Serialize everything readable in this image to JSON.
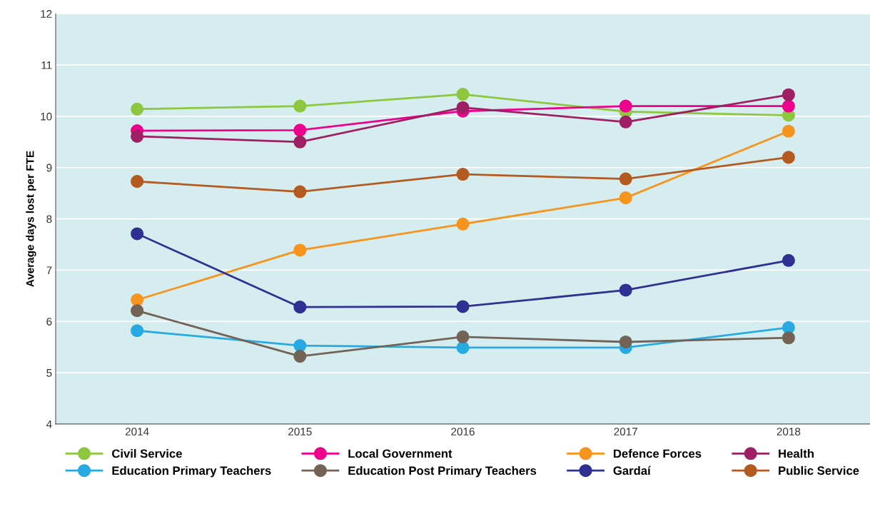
{
  "chart_data": {
    "type": "line",
    "ylabel": "Average days lost per FTE",
    "categories": [
      "2014",
      "2015",
      "2016",
      "2017",
      "2018"
    ],
    "ylim": [
      4,
      12
    ],
    "yticks": [
      4,
      5,
      6,
      7,
      8,
      9,
      10,
      11,
      12
    ],
    "grid": "y",
    "legend": "bottom",
    "marker": "circle",
    "line_style": "solid",
    "series": [
      {
        "name": "Civil Service",
        "color": "#8dc63f",
        "values": [
          10.14,
          10.2,
          10.43,
          10.09,
          10.02
        ]
      },
      {
        "name": "Local Government",
        "color": "#ec008c",
        "values": [
          9.72,
          9.73,
          10.1,
          10.2,
          10.2
        ]
      },
      {
        "name": "Defence Forces",
        "color": "#f7941d",
        "values": [
          6.42,
          7.39,
          7.9,
          8.41,
          9.71
        ]
      },
      {
        "name": "Health",
        "color": "#9e1f63",
        "values": [
          9.61,
          9.5,
          10.17,
          9.89,
          10.42
        ]
      },
      {
        "name": "Education Primary Teachers",
        "color": "#27aae1",
        "values": [
          5.82,
          5.53,
          5.49,
          5.49,
          5.88
        ]
      },
      {
        "name": "Education Post Primary Teachers",
        "color": "#736357",
        "values": [
          6.21,
          5.32,
          5.7,
          5.6,
          5.68
        ]
      },
      {
        "name": "Gardaí",
        "color": "#2e3192",
        "values": [
          7.71,
          6.28,
          6.29,
          6.61,
          7.19
        ]
      },
      {
        "name": "Public Service",
        "color": "#b35a20",
        "values": [
          8.73,
          8.53,
          8.87,
          8.78,
          9.2
        ]
      }
    ]
  }
}
